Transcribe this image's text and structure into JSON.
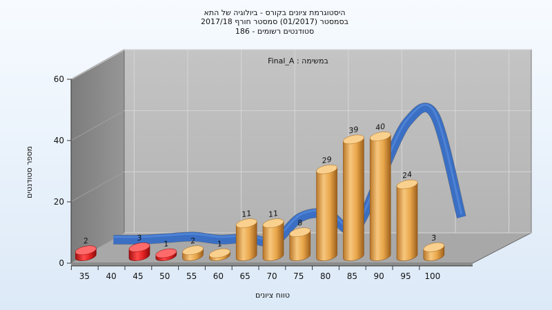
{
  "chart_data": {
    "type": "bar",
    "title_lines": [
      "היסטוגרמת ציונים בקורס - ביולוגיה של התא",
      "בסמסטר  (01/2017)  סמסטר חורף 2017/18",
      "סטודנטים רשומים - 186"
    ],
    "annotation": "במשימה : Final_A",
    "xlabel": "טווח ציונים",
    "ylabel": "מספר סטודנטים",
    "ylim": [
      0,
      60
    ],
    "y_ticks": [
      "0",
      "20",
      "40",
      "60"
    ],
    "x_ticks": [
      "35",
      "40",
      "45",
      "50",
      "55",
      "60",
      "65",
      "70",
      "75",
      "80",
      "85",
      "90",
      "95",
      "100"
    ],
    "grid": true,
    "bars": [
      {
        "x": 35,
        "value": 2,
        "color": "red"
      },
      {
        "x": 45,
        "value": 3,
        "color": "red"
      },
      {
        "x": 50,
        "value": 1,
        "color": "red"
      },
      {
        "x": 55,
        "value": 2,
        "color": "orange"
      },
      {
        "x": 60,
        "value": 1,
        "color": "orange"
      },
      {
        "x": 65,
        "value": 11,
        "color": "orange"
      },
      {
        "x": 70,
        "value": 11,
        "color": "orange"
      },
      {
        "x": 75,
        "value": 8,
        "color": "orange"
      },
      {
        "x": 80,
        "value": 29,
        "color": "orange"
      },
      {
        "x": 85,
        "value": 39,
        "color": "orange"
      },
      {
        "x": 90,
        "value": 40,
        "color": "orange"
      },
      {
        "x": 95,
        "value": 24,
        "color": "orange"
      },
      {
        "x": 100,
        "value": 3,
        "color": "orange"
      }
    ],
    "trend_line": {
      "x": [
        35,
        40,
        45,
        50,
        55,
        60,
        65,
        70,
        75,
        80,
        85,
        90,
        95,
        100
      ],
      "values": [
        0.5,
        0.5,
        1,
        1.5,
        0.5,
        1,
        0,
        8,
        9,
        4,
        22,
        40,
        42,
        8
      ],
      "color": "#3a6fc4"
    },
    "colors": {
      "bar_red": "#e02020",
      "bar_orange": "#e8a64a",
      "wall_back": "#bdbdbd",
      "wall_left": "#8a8a8a",
      "floor": "#a9a9a9"
    }
  }
}
